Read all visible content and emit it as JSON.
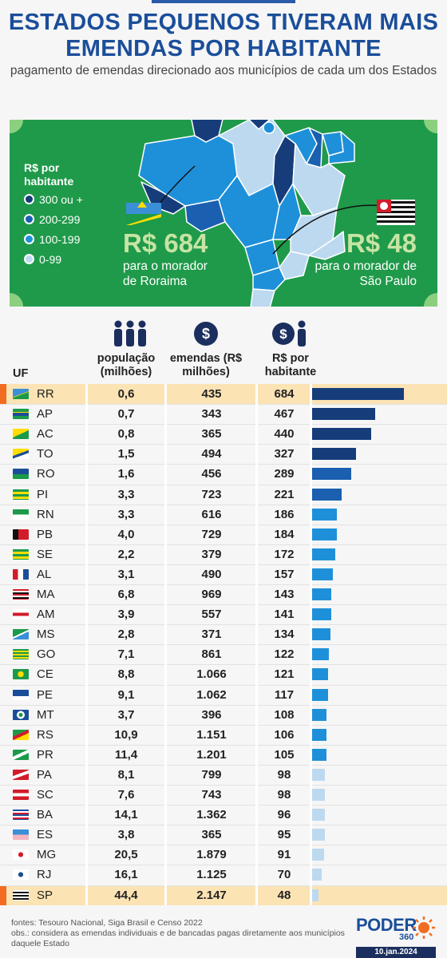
{
  "title": "ESTADOS PEQUENOS TIVERAM MAIS EMENDAS POR HABITANTE",
  "subtitle": "pagamento de emendas direcionado aos municípios de cada um dos Estados",
  "map": {
    "legend_title": "R$ por habitante",
    "legend_items": [
      {
        "label": "300 ou +",
        "color": "#163d7a"
      },
      {
        "label": "200-299",
        "color": "#1a5fb0"
      },
      {
        "label": "100-199",
        "color": "#1e90d9"
      },
      {
        "label": "0-99",
        "color": "#bcd9f0"
      }
    ],
    "left_value": "R$ 684",
    "left_desc": "para o morador de Roraima",
    "right_value": "R$ 48",
    "right_desc": "para o morador de São Paulo"
  },
  "columns": {
    "uf": "UF",
    "pop": "população (milhões)",
    "em": "emendas (R$ milhões)",
    "rph": "R$ por habitante"
  },
  "chart_data": {
    "type": "bar",
    "categories": [
      "RR",
      "AP",
      "AC",
      "TO",
      "RO",
      "PI",
      "RN",
      "PB",
      "SE",
      "AL",
      "MA",
      "AM",
      "MS",
      "GO",
      "CE",
      "PE",
      "MT",
      "RS",
      "PR",
      "PA",
      "SC",
      "BA",
      "ES",
      "MG",
      "RJ",
      "SP"
    ],
    "populacao": [
      "0,6",
      "0,7",
      "0,8",
      "1,5",
      "1,6",
      "3,3",
      "3,3",
      "4,0",
      "2,2",
      "3,1",
      "6,8",
      "3,9",
      "2,8",
      "7,1",
      "8,8",
      "9,1",
      "3,7",
      "10,9",
      "11,4",
      "8,1",
      "7,6",
      "14,1",
      "3,8",
      "20,5",
      "16,1",
      "44,4"
    ],
    "emendas": [
      "435",
      "343",
      "365",
      "494",
      "456",
      "723",
      "616",
      "729",
      "379",
      "490",
      "969",
      "557",
      "371",
      "861",
      "1.066",
      "1.062",
      "396",
      "1.151",
      "1.201",
      "799",
      "743",
      "1.362",
      "365",
      "1.879",
      "1.125",
      "2.147"
    ],
    "values": [
      684,
      467,
      440,
      327,
      289,
      221,
      186,
      184,
      172,
      157,
      143,
      141,
      134,
      122,
      121,
      117,
      108,
      106,
      105,
      98,
      98,
      96,
      95,
      91,
      70,
      48
    ],
    "highlight": [
      "RR",
      "SP"
    ],
    "bar_colors": {
      "300+": "#163d7a",
      "200-299": "#1a5fb0",
      "100-199": "#1e90d9",
      "0-99": "#bcd9f0"
    }
  },
  "footer": {
    "sources": "fontes: Tesouro Nacional, Siga Brasil e Censo 2022",
    "obs": "obs.: considera as emendas individuais e de bancadas pagas diretamente aos municípios daquele Estado"
  },
  "brand": {
    "name": "PODER",
    "sub": "360",
    "date": "10.jan.2024"
  }
}
